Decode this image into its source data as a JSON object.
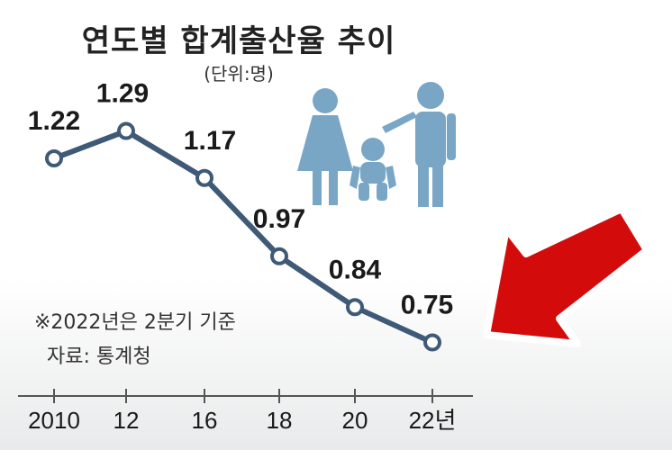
{
  "chart_data": {
    "type": "line",
    "title": "연도별 합계출산율 추이",
    "subtitle": "(단위:명)",
    "categories": [
      "2010",
      "12",
      "16",
      "18",
      "20",
      "22년"
    ],
    "values": [
      1.22,
      1.29,
      1.17,
      0.97,
      0.84,
      0.75
    ],
    "data_labels": [
      "1.22",
      "1.29",
      "1.17",
      "0.97",
      "0.84",
      "0.75"
    ],
    "notes": [
      "※2022년은 2분기 기준",
      "자료: 통계청"
    ],
    "line_color": "#3e5a77",
    "grid": false
  },
  "colors": {
    "figure": "#7aa6c6",
    "arrow": "#d40b0b",
    "arrow_outline": "#ffffff"
  },
  "icons": [
    "family-icon",
    "red-arrow-icon"
  ]
}
